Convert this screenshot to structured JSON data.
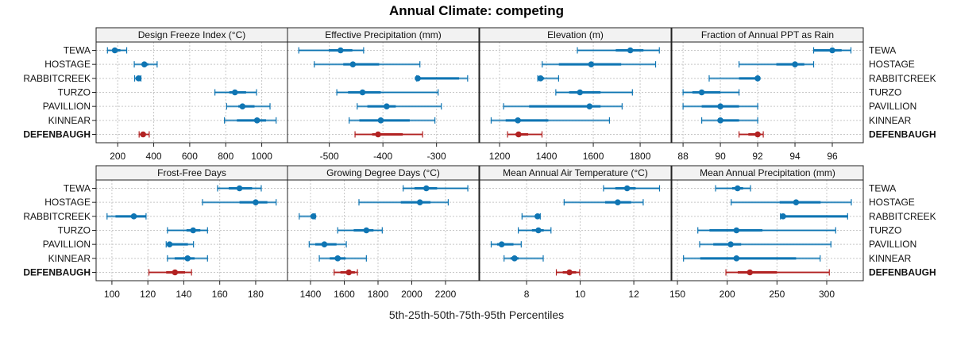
{
  "chart_data": {
    "type": "dot-whisker",
    "title": "Annual Climate: competing",
    "xlabel": "5th-25th-50th-75th-95th Percentiles",
    "series_names": [
      "p5",
      "p25",
      "p50",
      "p75",
      "p95"
    ],
    "categories": [
      "TEWA",
      "HOSTAGE",
      "RABBITCREEK",
      "TURZO",
      "PAVILLION",
      "KINNEAR",
      "DEFENBAUGH"
    ],
    "highlight_category": "DEFENBAUGH",
    "colors": {
      "competing": "#0f75b3",
      "highlight": "#b22222"
    },
    "legend": "none",
    "grid": true,
    "panels": [
      {
        "name": "Design Freeze Index (°C)",
        "xlim": [
          80,
          1143
        ],
        "ticks": [
          200,
          400,
          600,
          800,
          1000
        ],
        "rows": [
          [
            143,
            170,
            184,
            215,
            250
          ],
          [
            292,
            335,
            348,
            370,
            419
          ],
          [
            294,
            305,
            316,
            322,
            329
          ],
          [
            740,
            820,
            851,
            913,
            971
          ],
          [
            805,
            870,
            893,
            960,
            1046
          ],
          [
            793,
            862,
            974,
            1024,
            1080
          ],
          [
            319,
            332,
            341,
            355,
            375
          ]
        ]
      },
      {
        "name": "Effective Precipitation (mm)",
        "xlim": [
          -578,
          -221
        ],
        "ticks": [
          -500,
          -400,
          -300
        ],
        "rows": [
          [
            -557,
            -501,
            -479,
            -457,
            -436
          ],
          [
            -528,
            -474,
            -456,
            -407,
            -331
          ],
          [
            -337,
            -335,
            -335,
            -258,
            -242
          ],
          [
            -486,
            -465,
            -438,
            -404,
            -297
          ],
          [
            -448,
            -429,
            -393,
            -376,
            -291
          ],
          [
            -463,
            -444,
            -404,
            -350,
            -303
          ],
          [
            -452,
            -420,
            -409,
            -363,
            -326
          ]
        ]
      },
      {
        "name": "Elevation (m)",
        "xlim": [
          1115,
          1932
        ],
        "ticks": [
          1200,
          1400,
          1600,
          1800
        ],
        "rows": [
          [
            1532,
            1696,
            1758,
            1814,
            1882
          ],
          [
            1382,
            1453,
            1591,
            1719,
            1866
          ],
          [
            1363,
            1370,
            1375,
            1390,
            1452
          ],
          [
            1440,
            1497,
            1543,
            1631,
            1767
          ],
          [
            1217,
            1326,
            1584,
            1631,
            1723
          ],
          [
            1164,
            1226,
            1278,
            1408,
            1669
          ],
          [
            1234,
            1268,
            1281,
            1322,
            1381
          ]
        ]
      },
      {
        "name": "Fraction of Annual PPT as Rain",
        "xlim": [
          87.4,
          97.66
        ],
        "ticks": [
          88,
          90,
          92,
          94,
          96
        ],
        "rows": [
          [
            95,
            95,
            96,
            96.5,
            97
          ],
          [
            91,
            93,
            94,
            94.5,
            95
          ],
          [
            89.4,
            91,
            92,
            92,
            92
          ],
          [
            88,
            88.5,
            89,
            90,
            91
          ],
          [
            88,
            89,
            90,
            91,
            92
          ],
          [
            89,
            90,
            90,
            91,
            92
          ],
          [
            91,
            91.5,
            92,
            92,
            92.3
          ]
        ]
      },
      {
        "name": "Frost-Free Days",
        "xlim": [
          91.2,
          197.7
        ],
        "ticks": [
          100,
          120,
          140,
          160,
          180
        ],
        "rows": [
          [
            158.8,
            165,
            171,
            178,
            183.1
          ],
          [
            150.4,
            171,
            180,
            186.5,
            191.4
          ],
          [
            97.3,
            102,
            112.2,
            119,
            119
          ],
          [
            130.9,
            141.5,
            145.2,
            149.2,
            153.2
          ],
          [
            130.2,
            132.1,
            132.1,
            142.3,
            145.4
          ],
          [
            130.9,
            134.9,
            142.1,
            146,
            153.2
          ],
          [
            120.6,
            130.2,
            135.1,
            140.7,
            144.3
          ]
        ]
      },
      {
        "name": "Growing Degree Days (°C)",
        "xlim": [
          1263.5,
          2397.6
        ],
        "ticks": [
          1400,
          1600,
          1800,
          2000,
          2200
        ],
        "rows": [
          [
            1949,
            2016,
            2086,
            2150,
            2332
          ],
          [
            1687,
            1935,
            2048,
            2111,
            2216
          ],
          [
            1333,
            1410,
            1417,
            1425,
            1428
          ],
          [
            1561,
            1656,
            1731,
            1773,
            1825
          ],
          [
            1392,
            1428,
            1482,
            1554,
            1612
          ],
          [
            1452,
            1514,
            1561,
            1608,
            1731
          ],
          [
            1540,
            1577,
            1627,
            1663,
            1678
          ]
        ]
      },
      {
        "name": "Mean Annual Air Temperature (°C)",
        "xlim": [
          6.25,
          13.39
        ],
        "ticks": [
          8,
          10,
          12
        ],
        "rows": [
          [
            10.87,
            11.31,
            11.75,
            12.07,
            12.96
          ],
          [
            9.4,
            10.93,
            11.4,
            11.9,
            12.35
          ],
          [
            7.83,
            8.35,
            8.41,
            8.45,
            8.51
          ],
          [
            7.69,
            8.2,
            8.44,
            8.64,
            8.91
          ],
          [
            6.68,
            6.9,
            7.07,
            7.51,
            7.8
          ],
          [
            7.16,
            7.4,
            7.55,
            7.7,
            8.62
          ],
          [
            9.11,
            9.35,
            9.6,
            9.85,
            9.98
          ]
        ]
      },
      {
        "name": "Mean Annual Precipitation (mm)",
        "xlim": [
          144.4,
          336.7
        ],
        "ticks": [
          150,
          200,
          250,
          300
        ],
        "rows": [
          [
            188.3,
            205,
            210.4,
            216,
            223.4
          ],
          [
            204,
            252.7,
            269.2,
            293.9,
            324.7
          ],
          [
            253.5,
            256.1,
            256.1,
            321,
            321
          ],
          [
            170.5,
            182.2,
            209.3,
            235.4,
            309
          ],
          [
            172.3,
            186,
            203.5,
            214,
            304.2
          ],
          [
            156.1,
            172.9,
            209.3,
            269.2,
            293.4
          ],
          [
            198.7,
            210.6,
            222.8,
            250,
            302.6
          ]
        ]
      }
    ]
  }
}
